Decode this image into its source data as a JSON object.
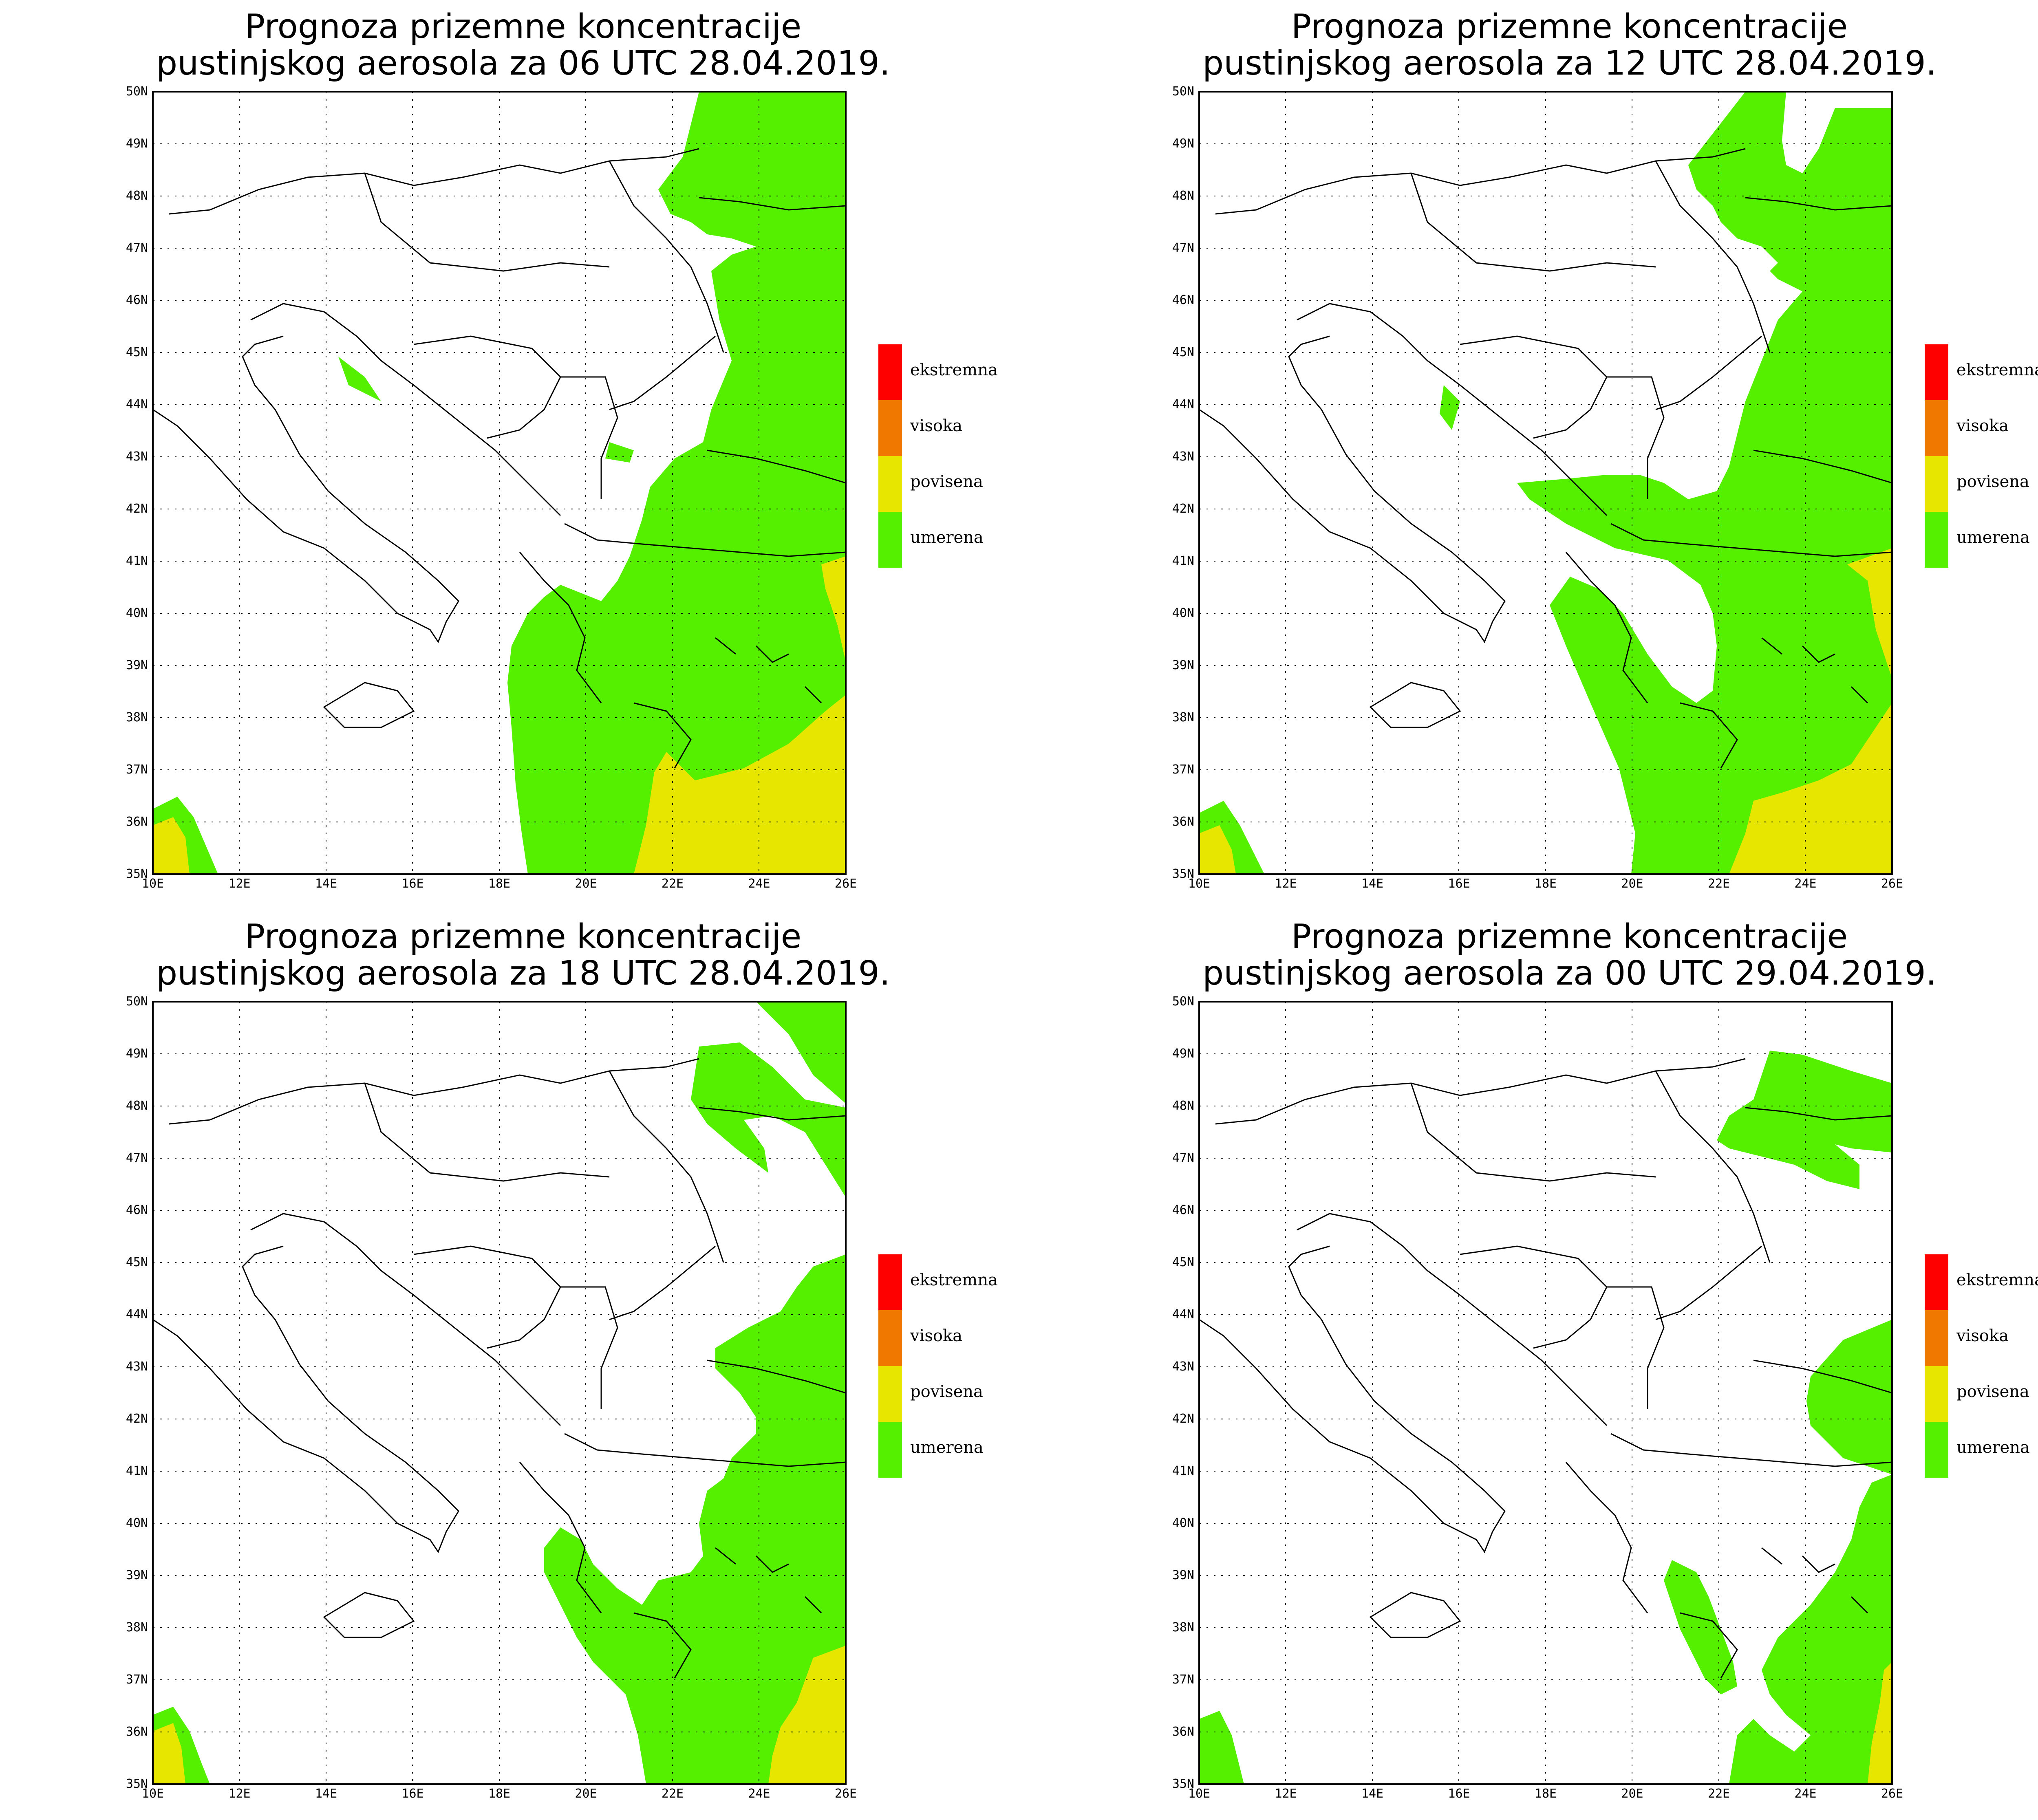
{
  "title_line1": "Prognoza prizemne koncentracije",
  "panels": [
    {
      "id": "p0",
      "title_line2": "pustinjskog aerosola za 06 UTC 28.04.2019."
    },
    {
      "id": "p1",
      "title_line2": "pustinjskog aerosola za 12 UTC 28.04.2019."
    },
    {
      "id": "p2",
      "title_line2": "pustinjskog aerosola za 18 UTC 28.04.2019."
    },
    {
      "id": "p3",
      "title_line2": "pustinjskog aerosola za 00 UTC 29.04.2019."
    }
  ],
  "legend": [
    {
      "label": "ekstremna",
      "color": "#ff0000"
    },
    {
      "label": "visoka",
      "color": "#f07800"
    },
    {
      "label": "povisena",
      "color": "#e6e600"
    },
    {
      "label": "umerena",
      "color": "#55f000"
    }
  ],
  "latitude_labels": [
    "50N",
    "49N",
    "48N",
    "47N",
    "46N",
    "45N",
    "44N",
    "43N",
    "42N",
    "41N",
    "40N",
    "39N",
    "38N",
    "37N",
    "36N",
    "35N"
  ],
  "longitude_labels": [
    "10E",
    "12E",
    "14E",
    "16E",
    "18E",
    "20E",
    "22E",
    "24E",
    "26E"
  ],
  "map_extent": {
    "lon": [
      10,
      26
    ],
    "lat": [
      35,
      50
    ]
  }
}
